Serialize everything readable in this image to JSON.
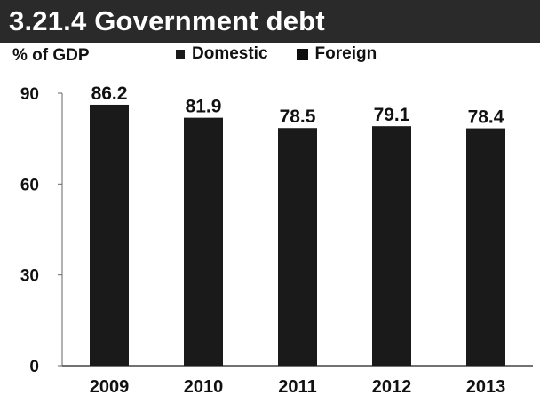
{
  "chart_data": {
    "type": "bar",
    "title": "3.21.4 Government debt",
    "ylabel": "% of GDP",
    "xlabel": "",
    "categories": [
      "2009",
      "2010",
      "2011",
      "2012",
      "2013"
    ],
    "totals": [
      86.2,
      81.9,
      78.5,
      79.1,
      78.4
    ],
    "total_labels": [
      "86.2",
      "81.9",
      "78.5",
      "79.1",
      "78.4"
    ],
    "series": [
      {
        "name": "Domestic",
        "color": "#1a1a1a"
      },
      {
        "name": "Foreign",
        "color": "#0d0d0d"
      }
    ],
    "ylim": [
      0,
      90
    ],
    "yticks": [
      0,
      30,
      60,
      90
    ],
    "ytick_labels": [
      "0",
      "30",
      "60",
      "90"
    ],
    "grid": false,
    "legend_position": "top"
  }
}
